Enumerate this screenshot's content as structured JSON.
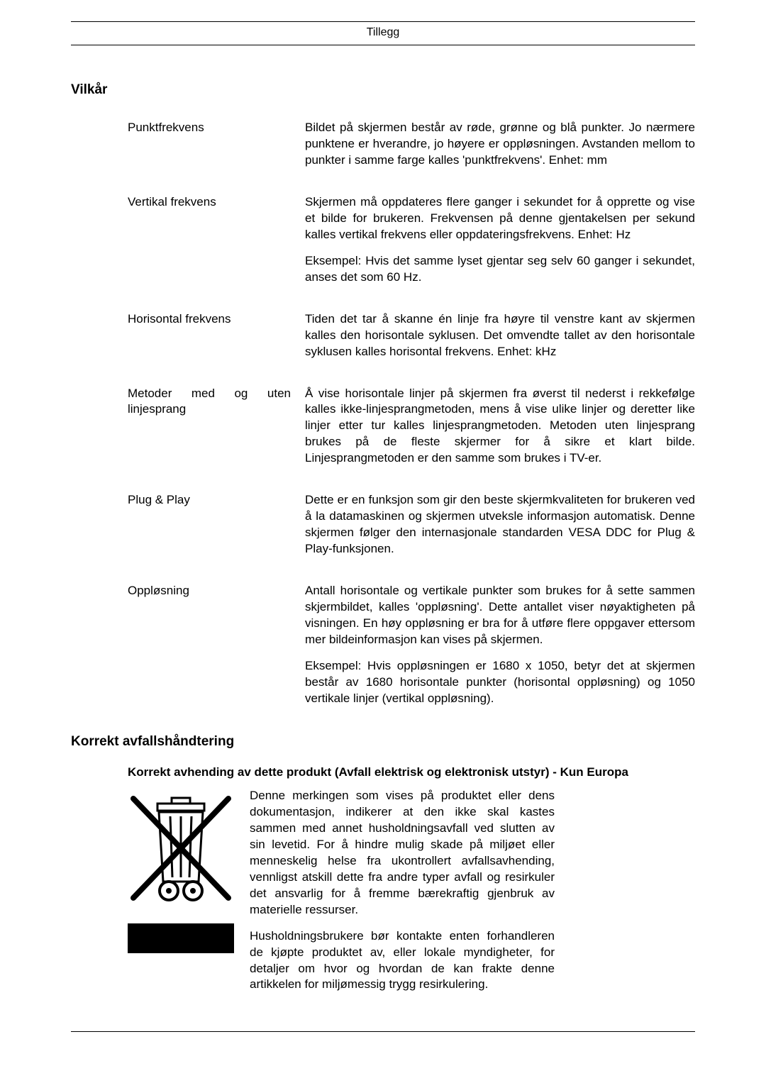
{
  "header": {
    "title": "Tillegg"
  },
  "section1": {
    "title": "Vilkår",
    "terms": [
      {
        "label": "Punktfrekvens",
        "paragraphs": [
          "Bildet på skjermen består av røde, grønne og blå punkter. Jo nærmere punktene er hverandre, jo høyere er oppløsningen. Avstanden mellom to punkter i samme farge kalles 'punktfrekvens'. Enhet: mm"
        ]
      },
      {
        "label": "Vertikal frekvens",
        "paragraphs": [
          "Skjermen må oppdateres flere ganger i sekundet for å opprette og vise et bilde for brukeren. Frekvensen på denne gjentakelsen per sekund kalles vertikal frekvens eller oppdateringsfrekvens. Enhet: Hz",
          "Eksempel: Hvis det samme lyset gjentar seg selv 60 ganger i sekundet, anses det som 60 Hz."
        ]
      },
      {
        "label": "Horisontal frekvens",
        "paragraphs": [
          "Tiden det tar å skanne én linje fra høyre til venstre kant av skjermen kalles den horisontale syklusen. Det omvendte tallet av den horisontale syklusen kalles horisontal frekvens. Enhet: kHz"
        ]
      },
      {
        "label": "Metoder med og uten linjesprang",
        "paragraphs": [
          "Å vise horisontale linjer på skjermen fra øverst til nederst i rekkefølge kalles ikke-linjesprangmetoden, mens å vise ulike linjer og deretter like linjer etter tur kalles linjesprangmetoden. Metoden uten linjesprang brukes på de fleste skjermer for å sikre et klart bilde. Linjesprangmetoden er den samme som brukes i TV-er."
        ]
      },
      {
        "label": "Plug & Play",
        "paragraphs": [
          "Dette er en funksjon som gir den beste skjermkvaliteten for brukeren ved å la datamaskinen og skjermen utveksle informasjon automatisk. Denne skjermen følger den internasjonale standarden VESA DDC for Plug & Play-funksjonen."
        ]
      },
      {
        "label": "Oppløsning",
        "paragraphs": [
          "Antall horisontale og vertikale punkter som brukes for å sette sammen skjermbildet, kalles 'oppløsning'. Dette antallet viser nøyaktigheten på visningen. En høy oppløsning er bra for å utføre flere oppgaver ettersom mer bildeinformasjon kan vises på skjermen.",
          "Eksempel: Hvis oppløsningen er 1680 x 1050, betyr det at skjermen består av 1680 horisontale punkter (horisontal oppløsning) og 1050 vertikale linjer (vertikal oppløsning)."
        ]
      }
    ]
  },
  "section2": {
    "title": "Korrekt avfallshåndtering",
    "heading": "Korrekt avhending av dette produkt (Avfall elektrisk og elektronisk utstyr) - Kun Europa",
    "paragraphs": [
      "Denne merkingen som vises på produktet eller dens dokumentasjon, indikerer at den ikke skal kastes sammen med annet husholdningsavfall ved slutten av sin levetid. For å hindre mulig skade på miljøet eller menneskelig helse fra ukontrollert avfallsavhending, vennligst atskill dette fra andre typer avfall og resirkuler det ansvarlig for å fremme bærekraftig gjenbruk av materielle ressurser.",
      "Husholdningsbrukere bør kontakte enten forhandleren de kjøpte produktet av, eller lokale myndigheter, for detaljer om hvor og hvordan de kan frakte denne artikkelen for miljømessig trygg resirkulering."
    ]
  }
}
